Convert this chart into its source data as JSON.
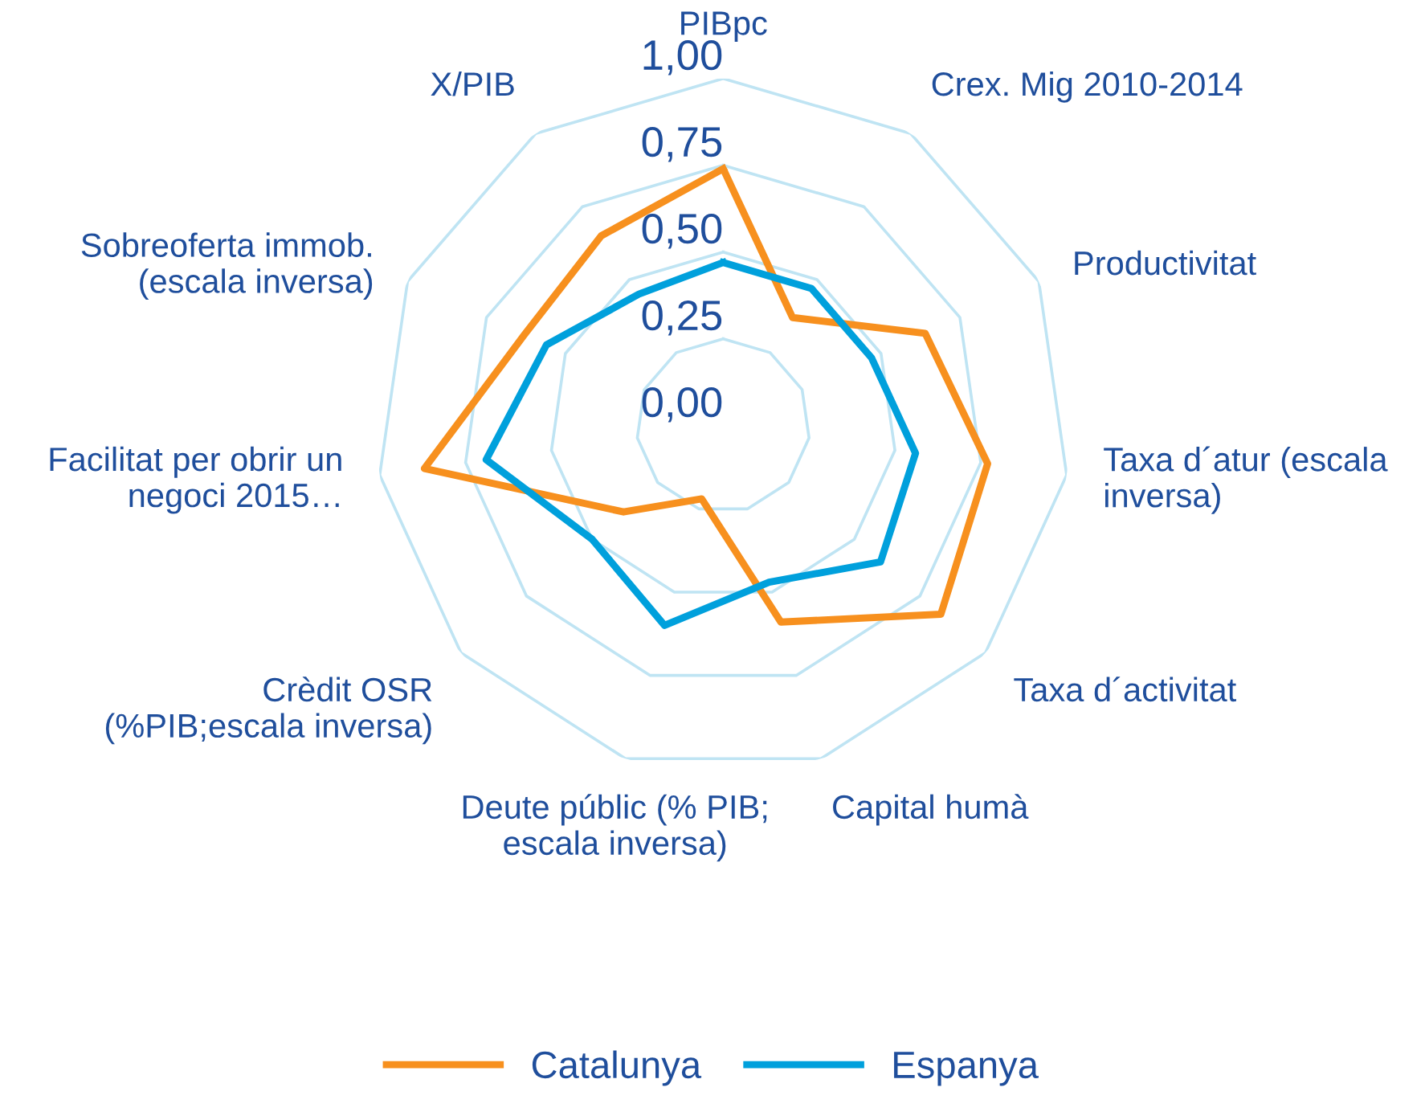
{
  "chart_data": {
    "type": "radar",
    "categories": [
      "PIBpc",
      "Crex. Mig 2010-2014",
      "Productivitat",
      "Taxa d´atur (escala\ninversa)",
      "Taxa d´activitat",
      "Capital humà",
      "Deute públic (% PIB;\nescala inversa)",
      "Crèdit OSR\n(%PIB;escala inversa)",
      "Facilitat per obrir un\nnegoci 2015…",
      "Sobreoferta immob.\n(escala inversa)",
      "X/PIB"
    ],
    "series": [
      {
        "name": "Catalunya",
        "color": "#f7901e",
        "values": [
          0.74,
          0.37,
          0.64,
          0.77,
          0.83,
          0.59,
          0.22,
          0.38,
          0.87,
          0.63,
          0.65
        ]
      },
      {
        "name": "Espanya",
        "color": "#00a0dc",
        "values": [
          0.47,
          0.47,
          0.47,
          0.56,
          0.6,
          0.47,
          0.6,
          0.5,
          0.69,
          0.56,
          0.45
        ]
      }
    ],
    "ylim": [
      0,
      1
    ],
    "yticks": [
      {
        "value": 0,
        "label": "0,00"
      },
      {
        "value": 0.25,
        "label": "0,25"
      },
      {
        "value": 0.5,
        "label": "0,50"
      },
      {
        "value": 0.75,
        "label": "0,75"
      },
      {
        "value": 1,
        "label": "1,00"
      }
    ],
    "grid": true,
    "legend": "bottom",
    "marker": "none",
    "line_style": "solid"
  }
}
